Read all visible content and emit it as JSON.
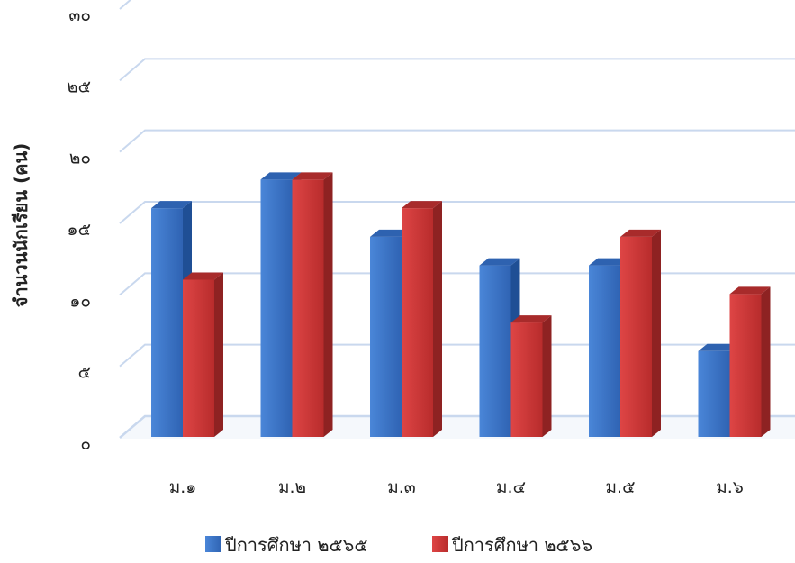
{
  "chart_data": {
    "type": "bar",
    "title": "",
    "xlabel": "",
    "ylabel": "จำนวนนักเรียน (คน)",
    "categories": [
      "ม.๑",
      "ม.๒",
      "ม.๓",
      "ม.๔",
      "ม.๕",
      "ม.๖"
    ],
    "series": [
      {
        "name": "ปีการศึกษา ๒๕๖๕",
        "values": [
          16,
          18,
          14,
          12,
          12,
          6
        ],
        "color": "#3a72c4"
      },
      {
        "name": "ปีการศึกษา ๒๕๖๖",
        "values": [
          11,
          18,
          16,
          8,
          14,
          10
        ],
        "color": "#c93434"
      }
    ],
    "ylim": [
      0,
      30
    ],
    "yticks": [
      0,
      5,
      10,
      15,
      20,
      25,
      30
    ],
    "ytick_labels": [
      "๐",
      "๕",
      "๑๐",
      "๑๕",
      "๒๐",
      "๒๕",
      "๓๐"
    ],
    "grid": true,
    "legend_position": "bottom"
  }
}
